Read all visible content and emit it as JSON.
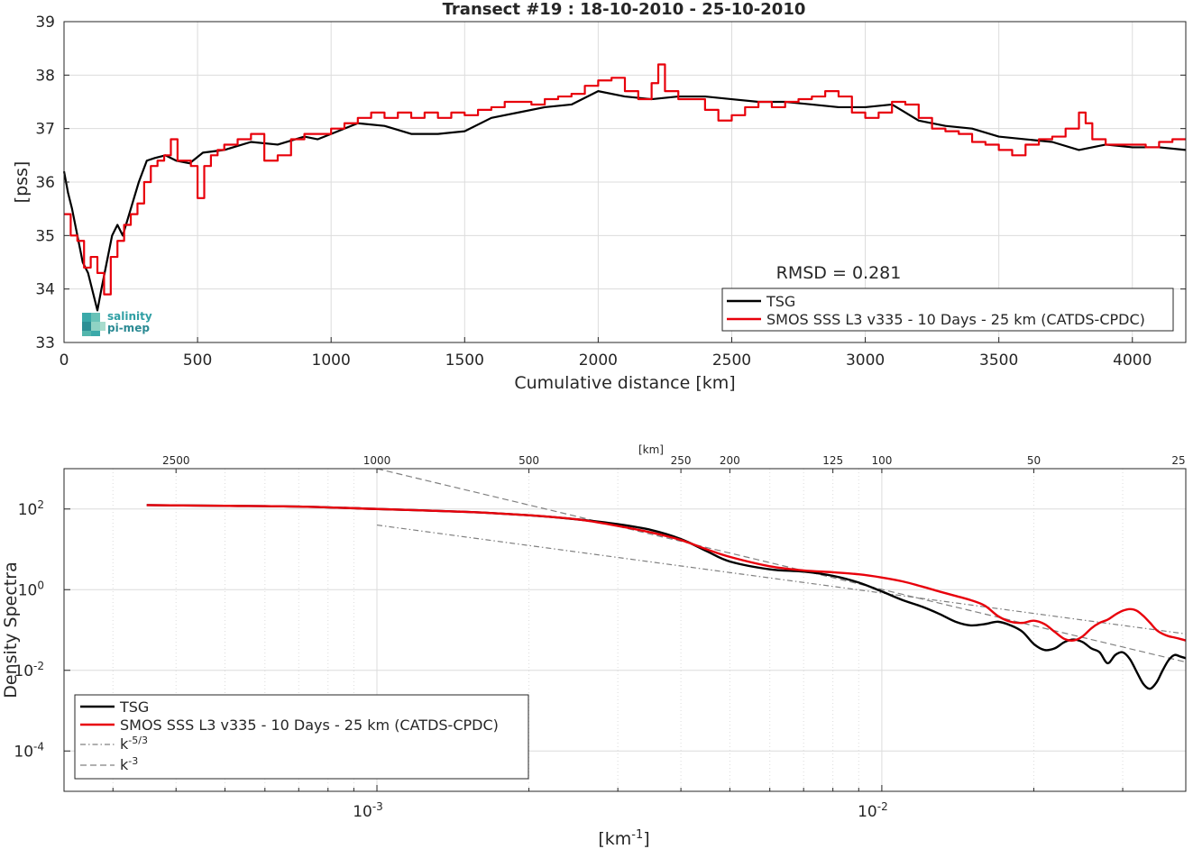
{
  "colors": {
    "tsg": "#000000",
    "smos": "#e8000b",
    "ref": "#808080",
    "grid": "#dcdcdc",
    "axis": "#262626"
  },
  "logo": {
    "line1": "salinity",
    "line2": "pi-mep"
  },
  "chart_data": [
    {
      "type": "line",
      "title": "Transect #19 : 18-10-2010 - 25-10-2010",
      "xlabel": "Cumulative distance [km]",
      "ylabel": "[pss]",
      "xlim": [
        0,
        4200
      ],
      "ylim": [
        33,
        39
      ],
      "xticks": [
        0,
        500,
        1000,
        1500,
        2000,
        2500,
        3000,
        3500,
        4000
      ],
      "yticks": [
        33,
        34,
        35,
        36,
        37,
        38,
        39
      ],
      "grid": true,
      "legend_position": "bottom-right",
      "annotation": "RMSD = 0.281",
      "series": [
        {
          "name": "TSG",
          "style": "solid",
          "x": [
            0,
            15,
            30,
            50,
            70,
            90,
            110,
            125,
            140,
            160,
            180,
            200,
            220,
            250,
            280,
            310,
            340,
            380,
            420,
            470,
            520,
            600,
            700,
            800,
            900,
            950,
            1000,
            1100,
            1200,
            1300,
            1400,
            1500,
            1600,
            1700,
            1800,
            1900,
            2000,
            2100,
            2200,
            2300,
            2400,
            2500,
            2600,
            2700,
            2800,
            2900,
            3000,
            3100,
            3150,
            3200,
            3300,
            3400,
            3500,
            3600,
            3700,
            3800,
            3900,
            4000,
            4100,
            4200
          ],
          "y": [
            36.2,
            35.8,
            35.5,
            35.0,
            34.5,
            34.3,
            33.9,
            33.6,
            34.0,
            34.5,
            35.0,
            35.2,
            35.0,
            35.5,
            36.0,
            36.4,
            36.45,
            36.5,
            36.4,
            36.35,
            36.55,
            36.6,
            36.75,
            36.7,
            36.85,
            36.8,
            36.9,
            37.1,
            37.05,
            36.9,
            36.9,
            36.95,
            37.2,
            37.3,
            37.4,
            37.45,
            37.7,
            37.6,
            37.55,
            37.6,
            37.6,
            37.55,
            37.5,
            37.5,
            37.45,
            37.4,
            37.4,
            37.45,
            37.3,
            37.15,
            37.05,
            37.0,
            36.85,
            36.8,
            36.75,
            36.6,
            36.7,
            36.65,
            36.65,
            36.6
          ]
        },
        {
          "name": "SMOS SSS L3 v335 - 10 Days - 25 km (CATDS-CPDC)",
          "style": "step",
          "x": [
            0,
            25,
            50,
            75,
            100,
            125,
            150,
            175,
            200,
            225,
            250,
            275,
            300,
            325,
            350,
            375,
            400,
            425,
            450,
            475,
            500,
            525,
            550,
            575,
            600,
            650,
            700,
            750,
            800,
            850,
            900,
            950,
            1000,
            1050,
            1100,
            1150,
            1200,
            1250,
            1300,
            1350,
            1400,
            1450,
            1500,
            1550,
            1600,
            1650,
            1700,
            1750,
            1800,
            1850,
            1900,
            1950,
            2000,
            2050,
            2100,
            2150,
            2200,
            2225,
            2250,
            2300,
            2350,
            2400,
            2450,
            2500,
            2550,
            2600,
            2650,
            2700,
            2750,
            2800,
            2850,
            2900,
            2950,
            3000,
            3050,
            3100,
            3150,
            3200,
            3250,
            3300,
            3350,
            3400,
            3450,
            3500,
            3550,
            3600,
            3650,
            3700,
            3750,
            3800,
            3825,
            3850,
            3900,
            3950,
            4000,
            4050,
            4100,
            4150,
            4200
          ],
          "y": [
            35.4,
            35.0,
            34.9,
            34.4,
            34.6,
            34.3,
            33.9,
            34.6,
            34.9,
            35.2,
            35.4,
            35.6,
            36.0,
            36.3,
            36.4,
            36.5,
            36.8,
            36.4,
            36.4,
            36.3,
            35.7,
            36.3,
            36.5,
            36.6,
            36.7,
            36.8,
            36.9,
            36.4,
            36.5,
            36.8,
            36.9,
            36.9,
            37.0,
            37.1,
            37.2,
            37.3,
            37.2,
            37.3,
            37.2,
            37.3,
            37.2,
            37.3,
            37.25,
            37.35,
            37.4,
            37.5,
            37.5,
            37.45,
            37.55,
            37.6,
            37.65,
            37.8,
            37.9,
            37.95,
            37.7,
            37.55,
            37.85,
            38.2,
            37.7,
            37.55,
            37.55,
            37.35,
            37.15,
            37.25,
            37.4,
            37.5,
            37.4,
            37.5,
            37.55,
            37.6,
            37.7,
            37.6,
            37.3,
            37.2,
            37.3,
            37.5,
            37.45,
            37.2,
            37.0,
            36.95,
            36.9,
            36.75,
            36.7,
            36.6,
            36.5,
            36.7,
            36.8,
            36.85,
            37.0,
            37.3,
            37.1,
            36.8,
            36.7,
            36.7,
            36.7,
            36.65,
            36.75,
            36.8,
            36.8
          ]
        }
      ]
    },
    {
      "type": "line",
      "title": "",
      "xlabel": "[km-1]",
      "ylabel": "Density Spectra",
      "x_scale": "log",
      "y_scale": "log",
      "xlim": [
        0.00024,
        0.04
      ],
      "ylim": [
        1e-05,
        1000
      ],
      "top_axis_label": "[km]",
      "top_axis_ticks": [
        2500,
        1000,
        500,
        250,
        200,
        125,
        100,
        50,
        25
      ],
      "grid": true,
      "legend_position": "bottom-left",
      "series": [
        {
          "name": "TSG",
          "style": "solid",
          "x": [
            0.00035,
            0.0005,
            0.0007,
            0.001,
            0.0015,
            0.002,
            0.0025,
            0.003,
            0.0035,
            0.004,
            0.0045,
            0.005,
            0.006,
            0.007,
            0.008,
            0.009,
            0.01,
            0.011,
            0.012,
            0.013,
            0.014,
            0.015,
            0.016,
            0.017,
            0.018,
            0.019,
            0.02,
            0.021,
            0.022,
            0.023,
            0.024,
            0.025,
            0.026,
            0.027,
            0.028,
            0.029,
            0.03,
            0.031,
            0.032,
            0.033,
            0.034,
            0.035,
            0.036,
            0.037,
            0.038,
            0.039,
            0.04
          ],
          "y": [
            125,
            120,
            115,
            100,
            85,
            70,
            55,
            42,
            30,
            18,
            9,
            5,
            3.2,
            2.8,
            2.2,
            1.5,
            0.9,
            0.55,
            0.38,
            0.25,
            0.16,
            0.13,
            0.14,
            0.16,
            0.13,
            0.09,
            0.045,
            0.032,
            0.035,
            0.05,
            0.058,
            0.05,
            0.035,
            0.028,
            0.015,
            0.024,
            0.028,
            0.019,
            0.009,
            0.0045,
            0.0035,
            0.005,
            0.01,
            0.018,
            0.024,
            0.022,
            0.02
          ]
        },
        {
          "name": "SMOS SSS L3 v335 - 10 Days - 25 km (CATDS-CPDC)",
          "style": "solid",
          "x": [
            0.00035,
            0.0005,
            0.0007,
            0.001,
            0.0015,
            0.002,
            0.0025,
            0.003,
            0.0035,
            0.004,
            0.0045,
            0.005,
            0.006,
            0.007,
            0.008,
            0.009,
            0.01,
            0.011,
            0.012,
            0.013,
            0.014,
            0.015,
            0.016,
            0.017,
            0.018,
            0.019,
            0.02,
            0.021,
            0.022,
            0.023,
            0.024,
            0.025,
            0.026,
            0.027,
            0.028,
            0.029,
            0.03,
            0.031,
            0.032,
            0.033,
            0.034,
            0.035,
            0.036,
            0.037,
            0.038,
            0.039,
            0.04
          ],
          "y": [
            125,
            120,
            115,
            100,
            85,
            70,
            55,
            38,
            26,
            17,
            10,
            6.5,
            3.8,
            3.0,
            2.7,
            2.4,
            2.0,
            1.6,
            1.2,
            0.9,
            0.7,
            0.55,
            0.4,
            0.22,
            0.16,
            0.15,
            0.17,
            0.14,
            0.09,
            0.06,
            0.055,
            0.07,
            0.11,
            0.15,
            0.18,
            0.24,
            0.3,
            0.33,
            0.3,
            0.22,
            0.15,
            0.1,
            0.08,
            0.07,
            0.065,
            0.06,
            0.055
          ]
        },
        {
          "name": "k-5/3",
          "style": "dashdot",
          "x": [
            0.001,
            0.04
          ],
          "y": [
            40,
            0.08
          ]
        },
        {
          "name": "k-3",
          "style": "dashed",
          "x": [
            0.001,
            0.04
          ],
          "y": [
            1000,
            0.016
          ]
        }
      ]
    }
  ]
}
